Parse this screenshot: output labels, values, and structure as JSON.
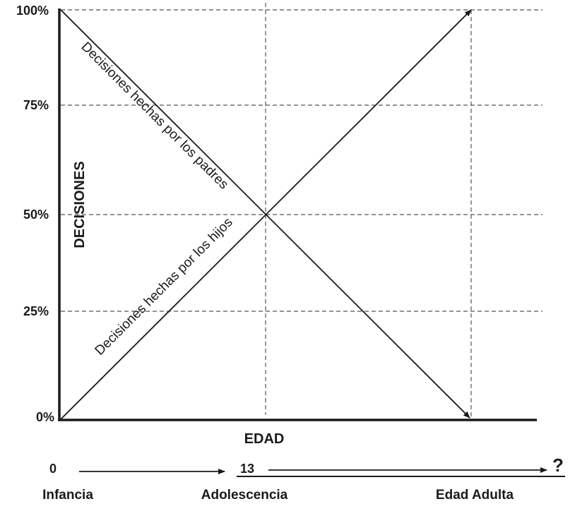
{
  "diagram": {
    "y_axis_title": "DECISIONES",
    "x_axis_title": "EDAD",
    "y_ticks": [
      {
        "label": "100%",
        "value": 100
      },
      {
        "label": "75%",
        "value": 75
      },
      {
        "label": "50%",
        "value": 50
      },
      {
        "label": "25%",
        "value": 25
      },
      {
        "label": "0%",
        "value": 0
      }
    ],
    "lines": {
      "parents": {
        "label": "Decisiones hechas por los padres",
        "from": 100,
        "to": 0
      },
      "children": {
        "label": "Decisiones hechas por los hijos",
        "from": 0,
        "to": 100
      }
    },
    "timeline": {
      "start_age": "0",
      "middle_age": "13",
      "end_marker": "?",
      "stages": [
        "Infancia",
        "Adolescencia",
        "Edad Adulta"
      ]
    },
    "colors": {
      "line": "#1a1a1a",
      "grid": "#555555",
      "text": "#1a1a1a"
    }
  }
}
